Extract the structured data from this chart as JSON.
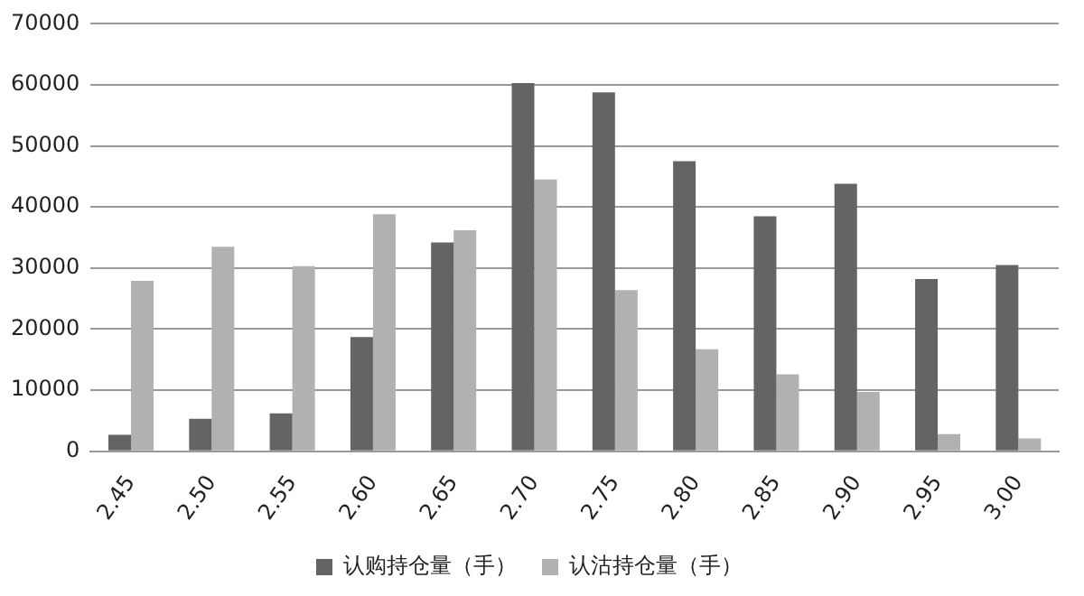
{
  "chart_data": {
    "type": "bar",
    "categories": [
      "2.45",
      "2.50",
      "2.55",
      "2.60",
      "2.65",
      "2.70",
      "2.75",
      "2.80",
      "2.85",
      "2.90",
      "2.95",
      "3.00"
    ],
    "series": [
      {
        "name": "认购持仓量（手）",
        "color": "#646464",
        "values": [
          2700,
          5300,
          6200,
          18700,
          34200,
          60300,
          58800,
          47500,
          38500,
          43800,
          28200,
          30500
        ]
      },
      {
        "name": "认沽持仓量（手）",
        "color": "#b1b1b1",
        "values": [
          27900,
          33500,
          30300,
          38800,
          36200,
          44500,
          26400,
          16700,
          12600,
          9700,
          2800,
          2100
        ]
      }
    ],
    "ylim": [
      0,
      70000
    ],
    "yticks": [
      0,
      10000,
      20000,
      30000,
      40000,
      50000,
      60000,
      70000
    ],
    "grid": "y",
    "legend": "bottom"
  }
}
